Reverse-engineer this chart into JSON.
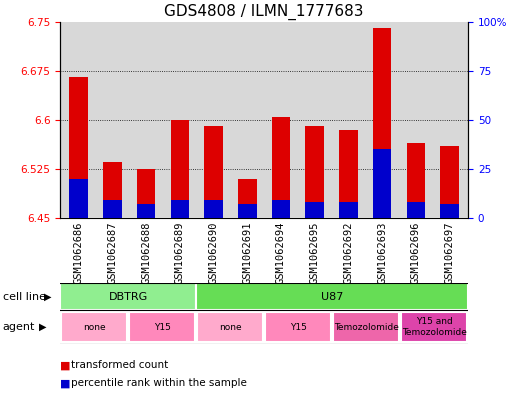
{
  "title": "GDS4808 / ILMN_1777683",
  "samples": [
    "GSM1062686",
    "GSM1062687",
    "GSM1062688",
    "GSM1062689",
    "GSM1062690",
    "GSM1062691",
    "GSM1062694",
    "GSM1062695",
    "GSM1062692",
    "GSM1062693",
    "GSM1062696",
    "GSM1062697"
  ],
  "transformed_count": [
    6.665,
    6.535,
    6.525,
    6.6,
    6.59,
    6.51,
    6.605,
    6.59,
    6.585,
    6.74,
    6.565,
    6.56
  ],
  "percentile_rank_pct": [
    20,
    9,
    7,
    9,
    9,
    7,
    9,
    8,
    8,
    35,
    8,
    7
  ],
  "bar_base": 6.45,
  "ylim_left": [
    6.45,
    6.75
  ],
  "ylim_right": [
    0,
    100
  ],
  "yticks_left": [
    6.45,
    6.525,
    6.6,
    6.675,
    6.75
  ],
  "yticks_right": [
    0,
    25,
    50,
    75,
    100
  ],
  "ytick_labels_left": [
    "6.45",
    "6.525",
    "6.6",
    "6.675",
    "6.75"
  ],
  "ytick_labels_right": [
    "0",
    "25",
    "50",
    "75",
    "100%"
  ],
  "bar_color_red": "#DD0000",
  "bar_color_blue": "#0000CC",
  "bg_color": "#D8D8D8",
  "title_fontsize": 11,
  "tick_fontsize": 7.5,
  "label_fontsize": 8,
  "cell_groups": [
    {
      "label": "DBTRG",
      "start": 0,
      "end": 4,
      "color": "#90EE90"
    },
    {
      "label": "U87",
      "start": 4,
      "end": 12,
      "color": "#66DD55"
    }
  ],
  "agent_groups": [
    {
      "label": "none",
      "start": 0,
      "end": 2,
      "color": "#FFAACC"
    },
    {
      "label": "Y15",
      "start": 2,
      "end": 4,
      "color": "#FF88BB"
    },
    {
      "label": "none",
      "start": 4,
      "end": 6,
      "color": "#FFAACC"
    },
    {
      "label": "Y15",
      "start": 6,
      "end": 8,
      "color": "#FF88BB"
    },
    {
      "label": "Temozolomide",
      "start": 8,
      "end": 10,
      "color": "#EE66AA"
    },
    {
      "label": "Y15 and\nTemozolomide",
      "start": 10,
      "end": 12,
      "color": "#DD44AA"
    }
  ]
}
